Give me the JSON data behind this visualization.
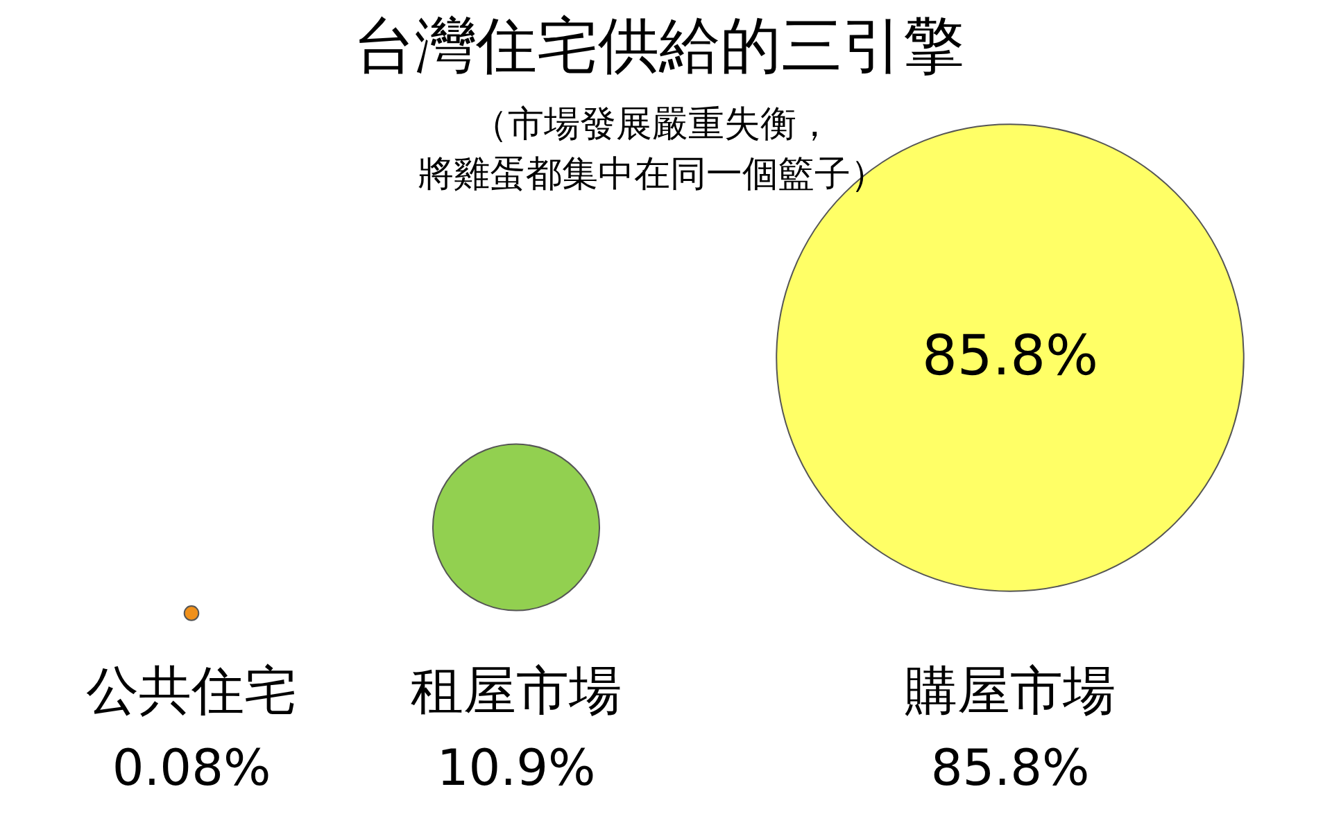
{
  "chart_data": {
    "type": "other",
    "title": "台灣住宅供給的三引擎",
    "subtitle": "（市場發展嚴重失衡，將雞蛋都集中在同一個籃子）",
    "categories": [
      "公共住宅",
      "租屋市場",
      "購屋市場"
    ],
    "values": [
      0.08,
      10.9,
      85.8
    ],
    "colors": [
      "#f0901a",
      "#92d050",
      "#ffff66"
    ],
    "value_labels": [
      "0.08%",
      "10.9%",
      "85.8%"
    ],
    "annotations": [
      "85.8%"
    ]
  }
}
